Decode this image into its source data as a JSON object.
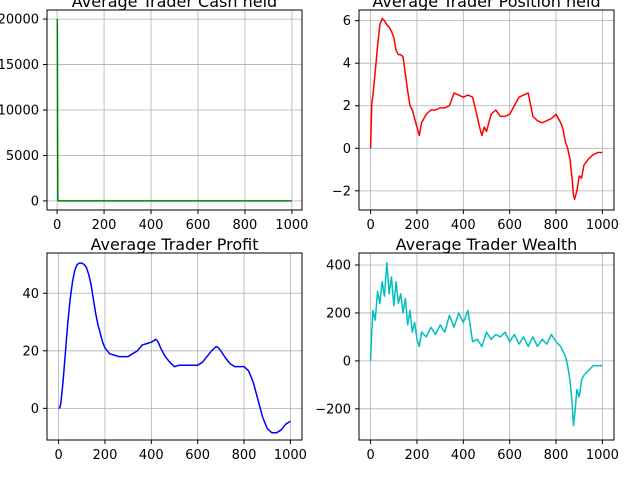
{
  "chart_data": [
    {
      "type": "line",
      "title": "Average Trader Cash held",
      "color": "#008000",
      "xlim": [
        -43,
        1043
      ],
      "ylim": [
        -1000,
        21000
      ],
      "xticks": [
        0,
        200,
        400,
        600,
        800,
        1000
      ],
      "yticks": [
        0,
        5000,
        10000,
        15000,
        20000
      ],
      "ytick_labels": [
        "0",
        "5000",
        "10000",
        "15000",
        "20000"
      ],
      "x": [
        0,
        1,
        2,
        3,
        5,
        10,
        50,
        100,
        200,
        300,
        400,
        500,
        600,
        700,
        800,
        900,
        1000
      ],
      "y": [
        20000,
        19900,
        9000,
        200,
        0,
        0,
        0,
        0,
        0,
        0,
        0,
        0,
        0,
        0,
        0,
        0,
        0
      ]
    },
    {
      "type": "line",
      "title": "Average Trader Position held",
      "color": "#ff0000",
      "xlim": [
        -50,
        1050
      ],
      "ylim": [
        -2.9,
        6.5
      ],
      "xticks": [
        0,
        200,
        400,
        600,
        800,
        1000
      ],
      "yticks": [
        -2,
        0,
        2,
        4,
        6
      ],
      "ytick_labels": [
        "−2",
        "0",
        "2",
        "4",
        "6"
      ],
      "x": [
        0,
        5,
        10,
        20,
        30,
        40,
        50,
        60,
        70,
        80,
        90,
        100,
        110,
        120,
        130,
        140,
        150,
        160,
        170,
        180,
        190,
        200,
        210,
        220,
        240,
        260,
        280,
        300,
        320,
        340,
        360,
        380,
        400,
        420,
        440,
        460,
        470,
        480,
        490,
        500,
        520,
        540,
        560,
        580,
        600,
        620,
        640,
        660,
        680,
        700,
        720,
        740,
        760,
        780,
        800,
        820,
        830,
        840,
        850,
        860,
        870,
        875,
        880,
        890,
        900,
        910,
        920,
        940,
        960,
        980,
        1000
      ],
      "y": [
        0,
        2.1,
        2.5,
        3.6,
        4.8,
        5.8,
        6.1,
        6.0,
        5.8,
        5.7,
        5.5,
        5.2,
        4.6,
        4.4,
        4.4,
        4.3,
        3.5,
        2.7,
        2.0,
        1.8,
        1.4,
        1.0,
        0.6,
        1.2,
        1.6,
        1.8,
        1.8,
        1.9,
        1.9,
        2.0,
        2.6,
        2.5,
        2.4,
        2.5,
        2.4,
        1.5,
        1.0,
        0.6,
        1.0,
        0.8,
        1.6,
        1.8,
        1.5,
        1.5,
        1.6,
        2.0,
        2.4,
        2.5,
        2.6,
        1.5,
        1.3,
        1.2,
        1.3,
        1.4,
        1.6,
        1.2,
        0.9,
        0.3,
        0.0,
        -0.5,
        -1.5,
        -2.2,
        -2.4,
        -2.0,
        -1.3,
        -1.4,
        -0.8,
        -0.5,
        -0.3,
        -0.2,
        -0.2
      ]
    },
    {
      "type": "line",
      "title": "Average Trader Profit",
      "color": "#0000ff",
      "xlim": [
        -50,
        1050
      ],
      "ylim": [
        -11,
        54
      ],
      "xticks": [
        0,
        200,
        400,
        600,
        800,
        1000
      ],
      "yticks": [
        0,
        20,
        40
      ],
      "ytick_labels": [
        "0",
        "20",
        "40"
      ],
      "x": [
        0,
        5,
        10,
        20,
        30,
        40,
        50,
        60,
        70,
        80,
        90,
        100,
        110,
        120,
        130,
        140,
        150,
        160,
        170,
        180,
        190,
        200,
        220,
        240,
        260,
        280,
        300,
        320,
        340,
        360,
        380,
        400,
        420,
        430,
        440,
        460,
        480,
        500,
        520,
        540,
        560,
        580,
        600,
        620,
        640,
        660,
        680,
        690,
        700,
        720,
        740,
        760,
        780,
        800,
        820,
        840,
        860,
        880,
        900,
        920,
        940,
        960,
        980,
        1000
      ],
      "y": [
        0,
        0.2,
        2,
        10,
        20,
        30,
        38,
        44,
        48,
        50,
        50.5,
        50.5,
        50,
        49,
        46.5,
        43,
        38,
        33,
        29,
        26,
        23,
        21,
        19,
        18.5,
        18,
        18,
        18,
        19,
        20,
        22,
        22.5,
        23,
        24,
        23,
        21,
        18,
        16,
        14.5,
        15,
        15,
        15,
        15,
        15,
        16,
        18,
        20,
        21.5,
        21,
        20,
        17.5,
        15.5,
        14.5,
        14.5,
        14.5,
        13,
        9,
        3,
        -3,
        -7,
        -8.5,
        -8.5,
        -7.5,
        -5.5,
        -4.5
      ]
    },
    {
      "type": "line",
      "title": "Average Trader Wealth",
      "color": "#00bfbf",
      "xlim": [
        -50,
        1050
      ],
      "ylim": [
        -330,
        450
      ],
      "xticks": [
        0,
        200,
        400,
        600,
        800,
        1000
      ],
      "yticks": [
        -200,
        0,
        200,
        400
      ],
      "ytick_labels": [
        "−200",
        "0",
        "200",
        "400"
      ],
      "x": [
        0,
        5,
        10,
        20,
        30,
        40,
        50,
        60,
        70,
        80,
        90,
        100,
        110,
        120,
        130,
        140,
        150,
        160,
        170,
        180,
        190,
        200,
        210,
        220,
        240,
        260,
        280,
        300,
        320,
        340,
        360,
        380,
        400,
        420,
        440,
        460,
        480,
        500,
        520,
        540,
        560,
        580,
        600,
        620,
        640,
        660,
        680,
        700,
        720,
        740,
        760,
        780,
        800,
        820,
        840,
        850,
        860,
        870,
        875,
        880,
        890,
        900,
        910,
        920,
        940,
        960,
        980,
        1000
      ],
      "y": [
        0,
        120,
        210,
        170,
        290,
        240,
        330,
        270,
        410,
        280,
        350,
        230,
        330,
        240,
        280,
        200,
        260,
        150,
        210,
        120,
        160,
        90,
        60,
        120,
        100,
        140,
        110,
        150,
        120,
        190,
        140,
        200,
        160,
        210,
        80,
        90,
        60,
        120,
        90,
        110,
        100,
        120,
        80,
        110,
        70,
        100,
        60,
        100,
        60,
        90,
        70,
        110,
        80,
        60,
        20,
        -20,
        -80,
        -180,
        -270,
        -230,
        -120,
        -150,
        -80,
        -60,
        -40,
        -20,
        -20,
        -20
      ]
    }
  ]
}
